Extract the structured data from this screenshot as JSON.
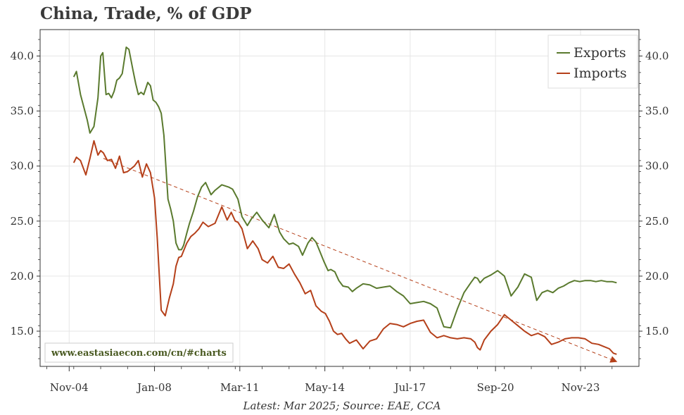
{
  "title": "China, Trade, % of GDP",
  "caption": "Latest: Mar 2025; Source: EAE, CCA",
  "watermark": "www.eastasiaecon.com/cn/#charts",
  "colors": {
    "exports": "#5a7a2e",
    "imports": "#b5401a",
    "grid": "#e6e6e6",
    "axis": "#333333"
  },
  "chart_data": {
    "type": "line",
    "title": "China, Trade, % of GDP",
    "xlabel": "",
    "ylabel": "",
    "ylim": [
      11.8,
      42.4
    ],
    "xlim": [
      2003.75,
      2026.0
    ],
    "grid": true,
    "legend_position": "top-right",
    "x_tick_labels": [
      "Nov-04",
      "Jan-08",
      "Mar-11",
      "May-14",
      "Jul-17",
      "Sep-20",
      "Nov-23"
    ],
    "x_tick_values": [
      2004.83,
      2008.0,
      2011.17,
      2014.33,
      2017.5,
      2020.67,
      2023.83
    ],
    "y_tick_labels": [
      "15.0",
      "20.0",
      "25.0",
      "30.0",
      "35.0",
      "40.0"
    ],
    "y_tick_values": [
      15,
      20,
      25,
      30,
      35,
      40
    ],
    "series": [
      {
        "name": "Exports",
        "x": [
          2005.0,
          2005.1,
          2005.25,
          2005.5,
          2005.6,
          2005.75,
          2005.9,
          2006.0,
          2006.08,
          2006.2,
          2006.3,
          2006.4,
          2006.5,
          2006.6,
          2006.7,
          2006.8,
          2006.95,
          2007.05,
          2007.2,
          2007.3,
          2007.4,
          2007.5,
          2007.6,
          2007.75,
          2007.85,
          2007.95,
          2008.05,
          2008.15,
          2008.25,
          2008.35,
          2008.5,
          2008.6,
          2008.7,
          2008.8,
          2008.9,
          2009.0,
          2009.08,
          2009.2,
          2009.3,
          2009.45,
          2009.6,
          2009.75,
          2009.9,
          2010.1,
          2010.25,
          2010.5,
          2010.75,
          2010.9,
          2011.1,
          2011.25,
          2011.45,
          2011.6,
          2011.8,
          2012.0,
          2012.25,
          2012.45,
          2012.65,
          2012.8,
          2013.0,
          2013.15,
          2013.35,
          2013.5,
          2013.7,
          2013.85,
          2014.0,
          2014.1,
          2014.3,
          2014.45,
          2014.55,
          2014.7,
          2014.85,
          2015.0,
          2015.2,
          2015.35,
          2015.5,
          2015.75,
          2016.0,
          2016.25,
          2016.5,
          2016.75,
          2017.0,
          2017.25,
          2017.5,
          2017.75,
          2018.0,
          2018.25,
          2018.5,
          2018.75,
          2019.0,
          2019.25,
          2019.5,
          2019.75,
          2019.9,
          2020.0,
          2020.1,
          2020.25,
          2020.5,
          2020.75,
          2021.0,
          2021.25,
          2021.5,
          2021.75,
          2022.0,
          2022.2,
          2022.4,
          2022.6,
          2022.8,
          2023.0,
          2023.2,
          2023.4,
          2023.6,
          2023.8,
          2024.0,
          2024.2,
          2024.4,
          2024.6,
          2024.8,
          2025.0,
          2025.17
        ],
        "values": [
          38.1,
          38.6,
          36.5,
          34.2,
          33.0,
          33.6,
          36.2,
          40.0,
          40.3,
          36.5,
          36.6,
          36.2,
          36.8,
          37.8,
          38.0,
          38.4,
          40.8,
          40.6,
          38.7,
          37.5,
          36.5,
          36.7,
          36.5,
          37.6,
          37.3,
          36.0,
          35.8,
          35.4,
          34.8,
          32.8,
          27.0,
          26.1,
          25.0,
          23.0,
          22.4,
          22.4,
          22.8,
          23.9,
          24.8,
          25.9,
          27.2,
          28.1,
          28.5,
          27.4,
          27.8,
          28.3,
          28.1,
          27.9,
          27.0,
          25.4,
          24.6,
          25.2,
          25.8,
          25.1,
          24.4,
          25.6,
          24.0,
          23.4,
          22.9,
          23.0,
          22.7,
          21.9,
          23.0,
          23.5,
          23.1,
          22.5,
          21.3,
          20.5,
          20.6,
          20.4,
          19.6,
          19.1,
          19.0,
          18.6,
          18.9,
          19.3,
          19.2,
          18.9,
          19.0,
          19.1,
          18.6,
          18.2,
          17.5,
          17.6,
          17.7,
          17.5,
          17.1,
          15.4,
          15.3,
          17.0,
          18.5,
          19.4,
          19.9,
          19.8,
          19.4,
          19.8,
          20.1,
          20.5,
          20.0,
          18.2,
          19.0,
          20.2,
          19.9,
          17.8,
          18.5,
          18.7,
          18.5,
          18.9,
          19.1,
          19.4,
          19.6,
          19.5,
          19.6,
          19.6,
          19.5,
          19.6,
          19.5,
          19.5,
          19.4
        ]
      },
      {
        "name": "Imports",
        "x": [
          2005.0,
          2005.1,
          2005.25,
          2005.45,
          2005.6,
          2005.75,
          2005.9,
          2006.0,
          2006.1,
          2006.25,
          2006.4,
          2006.55,
          2006.7,
          2006.85,
          2007.0,
          2007.1,
          2007.25,
          2007.4,
          2007.55,
          2007.7,
          2007.85,
          2008.0,
          2008.1,
          2008.25,
          2008.4,
          2008.55,
          2008.7,
          2008.8,
          2008.9,
          2009.0,
          2009.08,
          2009.2,
          2009.35,
          2009.5,
          2009.65,
          2009.8,
          2010.0,
          2010.25,
          2010.5,
          2010.7,
          2010.85,
          2011.0,
          2011.1,
          2011.25,
          2011.45,
          2011.65,
          2011.85,
          2012.0,
          2012.2,
          2012.4,
          2012.6,
          2012.8,
          2013.0,
          2013.2,
          2013.4,
          2013.6,
          2013.8,
          2014.0,
          2014.2,
          2014.35,
          2014.5,
          2014.65,
          2014.8,
          2014.95,
          2015.1,
          2015.25,
          2015.5,
          2015.75,
          2016.0,
          2016.25,
          2016.5,
          2016.75,
          2017.0,
          2017.25,
          2017.5,
          2017.75,
          2018.0,
          2018.25,
          2018.5,
          2018.75,
          2019.0,
          2019.25,
          2019.5,
          2019.75,
          2019.9,
          2020.0,
          2020.1,
          2020.25,
          2020.5,
          2020.75,
          2021.0,
          2021.25,
          2021.5,
          2021.75,
          2022.0,
          2022.25,
          2022.5,
          2022.75,
          2023.0,
          2023.25,
          2023.5,
          2023.75,
          2024.0,
          2024.25,
          2024.5,
          2024.7,
          2024.9,
          2025.05,
          2025.17
        ],
        "values": [
          30.3,
          30.8,
          30.5,
          29.2,
          30.7,
          32.3,
          31.0,
          31.4,
          31.2,
          30.5,
          30.6,
          29.8,
          30.9,
          29.4,
          29.5,
          29.7,
          30.0,
          30.5,
          29.0,
          30.2,
          29.4,
          27.1,
          23.5,
          16.9,
          16.4,
          18.0,
          19.3,
          20.9,
          21.7,
          21.8,
          22.3,
          23.0,
          23.6,
          23.9,
          24.3,
          24.9,
          24.5,
          24.8,
          26.3,
          25.1,
          25.8,
          25.0,
          24.9,
          24.3,
          22.5,
          23.2,
          22.5,
          21.5,
          21.2,
          21.8,
          20.8,
          20.7,
          21.1,
          20.2,
          19.4,
          18.4,
          18.7,
          17.3,
          16.8,
          16.6,
          15.9,
          15.0,
          14.7,
          14.8,
          14.3,
          13.9,
          14.2,
          13.4,
          14.1,
          14.3,
          15.2,
          15.7,
          15.6,
          15.4,
          15.7,
          15.9,
          16.0,
          14.9,
          14.4,
          14.6,
          14.4,
          14.3,
          14.4,
          14.3,
          14.0,
          13.5,
          13.3,
          14.2,
          15.0,
          15.6,
          16.5,
          16.0,
          15.5,
          15.0,
          14.6,
          14.8,
          14.5,
          13.8,
          14.0,
          14.3,
          14.4,
          14.4,
          14.3,
          13.9,
          13.8,
          13.6,
          13.4,
          13.0,
          12.9
        ]
      }
    ],
    "trendline": {
      "x": [
        2006.1,
        2025.1
      ],
      "values": [
        30.7,
        12.3
      ],
      "style": "dashed",
      "color": "#b5401a"
    }
  }
}
